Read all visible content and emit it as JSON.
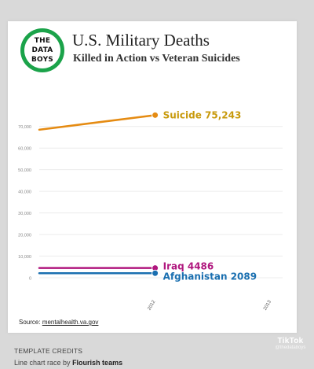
{
  "header": {
    "title": "U.S. Military Deaths",
    "subtitle": "Killed in Action vs Veteran Suicides"
  },
  "logo": {
    "line1": "THE",
    "line2": "DATA",
    "line3": "BOYS",
    "ring_color": "#1ba34a"
  },
  "chart_data": {
    "type": "line",
    "title": "U.S. Military Deaths",
    "subtitle": "Killed in Action vs Veteran Suicides",
    "x_ticks": [
      "2012",
      "2013"
    ],
    "ylim": [
      0,
      75000
    ],
    "y_ticks": [
      {
        "value": 0,
        "label": "0"
      },
      {
        "value": 10000,
        "label": "10,000"
      },
      {
        "value": 20000,
        "label": "20,000"
      },
      {
        "value": 30000,
        "label": "30,000"
      },
      {
        "value": 40000,
        "label": "40,000"
      },
      {
        "value": 50000,
        "label": "50,000"
      },
      {
        "value": 60000,
        "label": "60,000"
      },
      {
        "value": 70000,
        "label": "70,000"
      }
    ],
    "grid": true,
    "series": [
      {
        "name": "Suicide",
        "color": "#e58b12",
        "label_color": "#c89a0c",
        "points": [
          {
            "x": 2011.0,
            "y": 68500
          },
          {
            "x": 2012.0,
            "y": 75243
          }
        ],
        "end_label": "Suicide 75,243"
      },
      {
        "name": "Iraq",
        "color": "#b0177e",
        "label_color": "#b0177e",
        "points": [
          {
            "x": 2011.0,
            "y": 4486
          },
          {
            "x": 2012.0,
            "y": 4486
          }
        ],
        "end_label": "Iraq 4486"
      },
      {
        "name": "Afghanistan",
        "color": "#1a6fb0",
        "label_color": "#1a6fb0",
        "points": [
          {
            "x": 2011.0,
            "y": 2089
          },
          {
            "x": 2012.0,
            "y": 2089
          }
        ],
        "end_label": "Afghanistan 2089"
      }
    ]
  },
  "footer": {
    "source_label": "Source:",
    "source_link": "mentalhealth.va.gov"
  },
  "credits": {
    "title": "TEMPLATE CREDITS",
    "line_prefix": "Line chart race by",
    "line_bold": "Flourish teams"
  },
  "watermark": {
    "icon": "♪",
    "brand": "TikTok",
    "handle": "@thedataboys"
  }
}
